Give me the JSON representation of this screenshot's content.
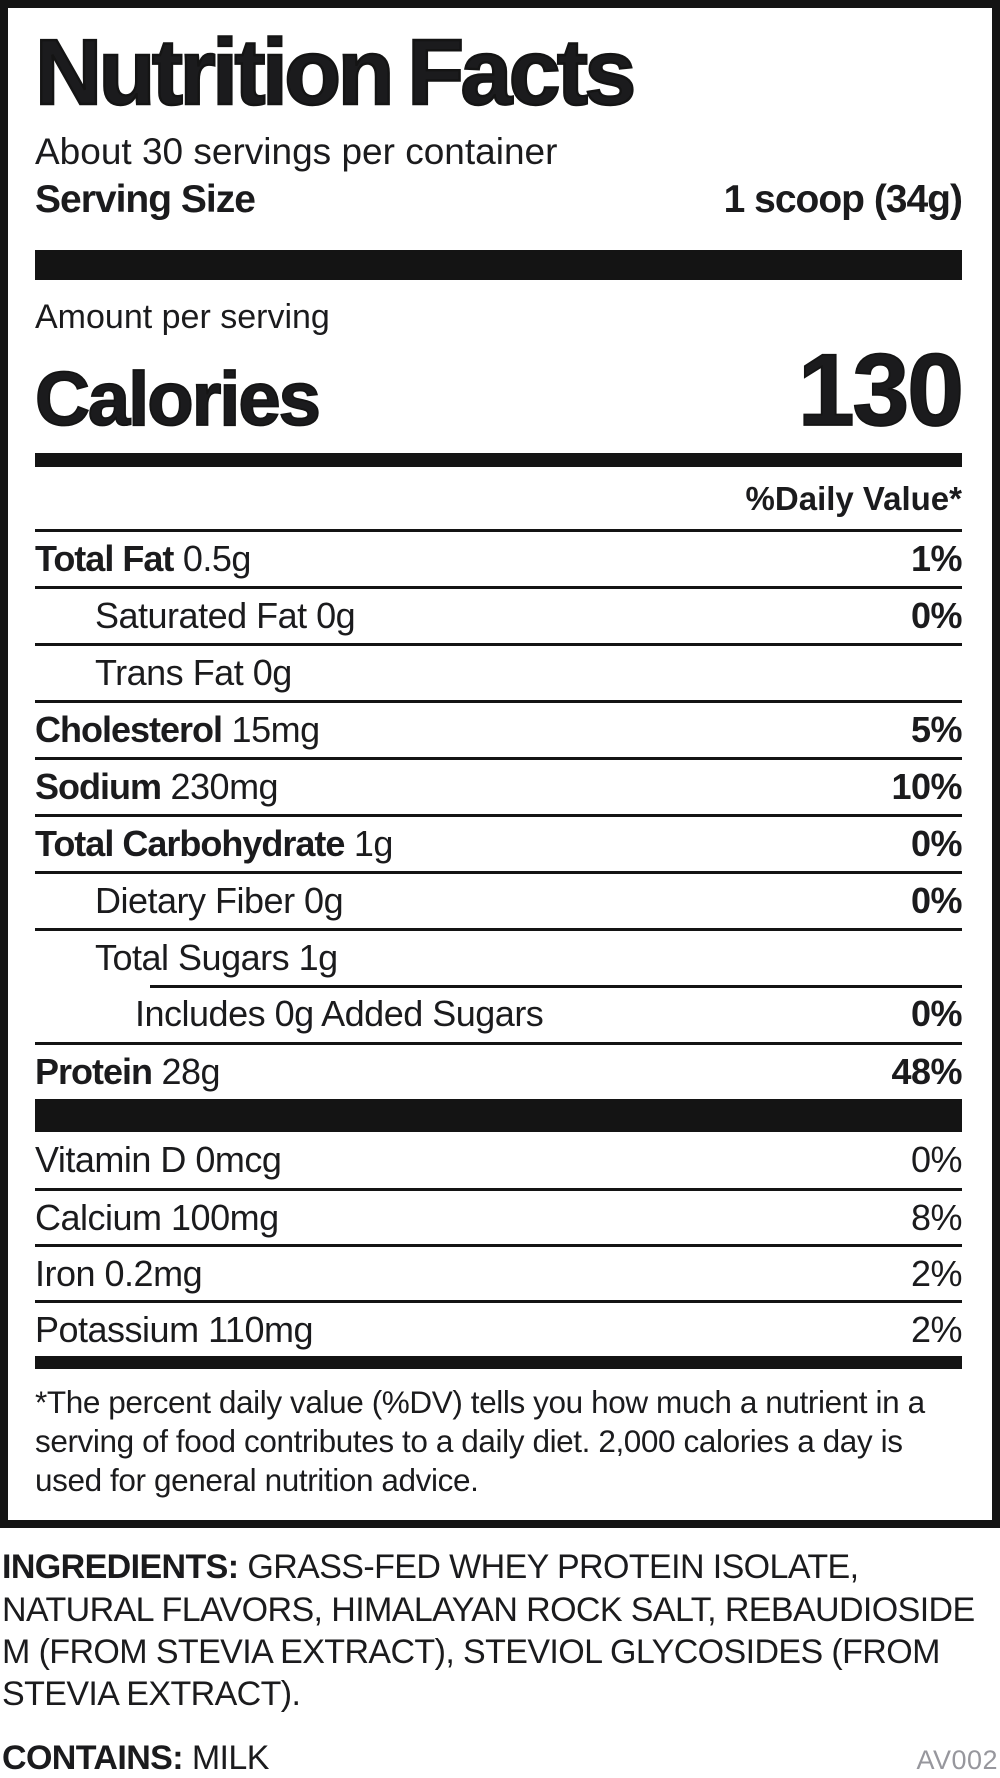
{
  "colors": {
    "text": "#1b1b1d",
    "rule": "#141414",
    "code": "#97979d"
  },
  "header": {
    "title": "Nutrition Facts",
    "servings_per_container": "About 30 servings per container",
    "serving_size_label": "Serving Size",
    "serving_size_value": "1 scoop (34g)"
  },
  "calories": {
    "amount_per_serving": "Amount per serving",
    "label": "Calories",
    "value": "130"
  },
  "daily_value_header": "%Daily Value*",
  "nutrients": [
    {
      "name": "Total Fat",
      "amount": "0.5g",
      "percent": "1%",
      "indent": 0,
      "bold_name": true,
      "bold_percent": true
    },
    {
      "name": "Saturated Fat",
      "amount": "0g",
      "percent": "0%",
      "indent": 1,
      "bold_name": false,
      "bold_percent": true
    },
    {
      "name": "Trans Fat",
      "amount": "0g",
      "percent": "",
      "indent": 1,
      "bold_name": false,
      "bold_percent": false
    },
    {
      "name": "Cholesterol",
      "amount": "15mg",
      "percent": "5%",
      "indent": 0,
      "bold_name": true,
      "bold_percent": true
    },
    {
      "name": "Sodium",
      "amount": "230mg",
      "percent": "10%",
      "indent": 0,
      "bold_name": true,
      "bold_percent": true
    },
    {
      "name": "Total Carbohydrate",
      "amount": "1g",
      "percent": "0%",
      "indent": 0,
      "bold_name": true,
      "bold_percent": true
    },
    {
      "name": "Dietary Fiber",
      "amount": "0g",
      "percent": "0%",
      "indent": 1,
      "bold_name": false,
      "bold_percent": true
    },
    {
      "name": "Total Sugars",
      "amount": "1g",
      "percent": "",
      "indent": 1,
      "bold_name": false,
      "bold_percent": false
    },
    {
      "name": "Includes 0g Added Sugars",
      "amount": "",
      "percent": "0%",
      "indent": 2,
      "bold_name": false,
      "bold_percent": true,
      "indent_rule": true
    },
    {
      "name": "Protein",
      "amount": "28g",
      "percent": "48%",
      "indent": 0,
      "bold_name": true,
      "bold_percent": true
    }
  ],
  "vitamins": [
    {
      "name": "Vitamin D",
      "amount": "0mcg",
      "percent": "0%"
    },
    {
      "name": "Calcium",
      "amount": "100mg",
      "percent": "8%"
    },
    {
      "name": "Iron",
      "amount": "0.2mg",
      "percent": "2%"
    },
    {
      "name": "Potassium",
      "amount": "110mg",
      "percent": "2%"
    }
  ],
  "footnote": "*The percent daily value (%DV) tells you how much a nutrient in a serving of food contributes to a daily diet. 2,000 calories a day is used for general nutrition advice.",
  "ingredients": {
    "label": "INGREDIENTS:",
    "text": "GRASS-FED WHEY PROTEIN ISOLATE, NATURAL FLAVORS, HIMALAYAN ROCK SALT, REBAUDIOSIDE M (FROM STEVIA EXTRACT), STEVIOL GLYCOSIDES (FROM STEVIA EXTRACT)."
  },
  "contains": {
    "label": "CONTAINS:",
    "value": "MILK"
  },
  "code": "AV002"
}
